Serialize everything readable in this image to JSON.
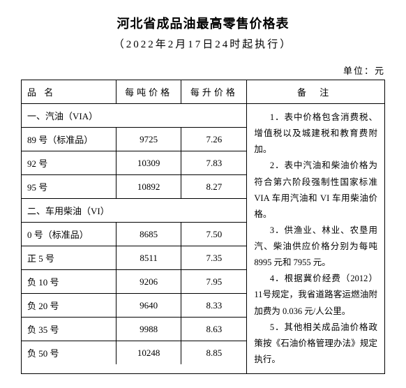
{
  "title": "河北省成品油最高零售价格表",
  "subtitle": "（2022年2月17日24时起执行）",
  "unit": "单位：元",
  "headers": {
    "name": "品 名",
    "per_ton": "每吨价格",
    "per_liter": "每升价格",
    "remark": "备 注"
  },
  "section1_label": "一、汽油（VIA）",
  "section2_label": "二、车用柴油（VI）",
  "gasoline": [
    {
      "name": "89 号（标准品）",
      "ton": "9725",
      "liter": "7.26"
    },
    {
      "name": "92 号",
      "ton": "10309",
      "liter": "7.83"
    },
    {
      "name": "95 号",
      "ton": "10892",
      "liter": "8.27"
    }
  ],
  "diesel": [
    {
      "name": "0 号（标准品）",
      "ton": "8685",
      "liter": "7.50"
    },
    {
      "name": "正 5 号",
      "ton": "8511",
      "liter": "7.35"
    },
    {
      "name": "负 10 号",
      "ton": "9206",
      "liter": "7.95"
    },
    {
      "name": "负 20 号",
      "ton": "9640",
      "liter": "8.33"
    },
    {
      "name": "负 35 号",
      "ton": "9988",
      "liter": "8.63"
    },
    {
      "name": "负 50 号",
      "ton": "10248",
      "liter": "8.85"
    }
  ],
  "remarks": [
    "1．表中价格包含消费税、增值税以及城建税和教育费附加。",
    "2．表中汽油和柴油价格为符合第六阶段强制性国家标准 VIA 车用汽油和 VI 车用柴油价格。",
    "3．供渔业、林业、农垦用汽、柴油供应价格分别为每吨 8995 元和 7955 元。",
    "4．根据冀价经费（2012）11号规定，我省道路客运燃油附加费为 0.036 元/人公里。",
    "5．其他相关成品油价格政策按《石油价格管理办法》规定执行。"
  ],
  "style": {
    "font_family": "SimSun",
    "title_fontsize": 18,
    "subtitle_fontsize": 15,
    "body_fontsize": 13,
    "remark_fontsize": 12.5,
    "border_color": "#000000",
    "background_color": "#ffffff",
    "text_color": "#000000"
  }
}
